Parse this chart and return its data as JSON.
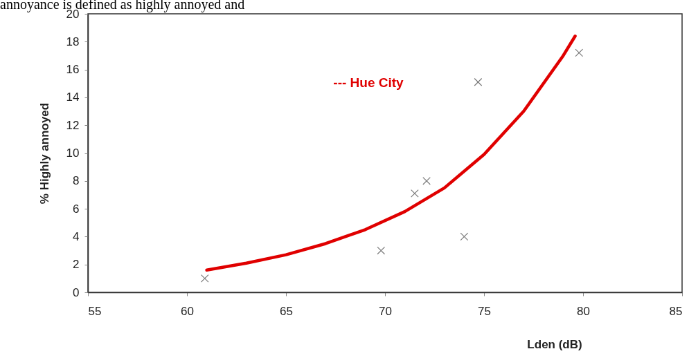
{
  "chart_data": {
    "type": "scatter",
    "xlabel": "Lden (dB)",
    "ylabel": "% Highly annoyed",
    "annotations": [
      "annoyance is defined as highly annoyed and",
      "--- Hue City"
    ],
    "series": [
      {
        "color": "#404040",
        "marker": "cross",
        "x": [
          60.9,
          69.8,
          71.5,
          72.1,
          74.0,
          74.7,
          79.8
        ],
        "values": [
          1.0,
          3.0,
          7.1,
          8.0,
          4.0,
          15.1,
          17.2
        ]
      },
      {
        "type": "line",
        "color": "#e00000",
        "marker": "none",
        "line_style": "solid",
        "x": [
          61,
          63,
          65,
          67,
          69,
          71,
          73,
          75,
          77,
          79,
          79.6
        ],
        "values": [
          1.6,
          2.1,
          2.7,
          3.5,
          4.5,
          5.8,
          7.5,
          9.9,
          13.0,
          17.0,
          18.4
        ]
      }
    ],
    "xlim": [
      55,
      85
    ],
    "xticks": [
      55,
      60,
      65,
      70,
      75,
      80,
      85
    ],
    "ylim": [
      0,
      20
    ],
    "yticks": [
      0,
      2,
      4,
      6,
      8,
      10,
      12,
      14,
      16,
      18,
      20
    ],
    "grid": false
  }
}
